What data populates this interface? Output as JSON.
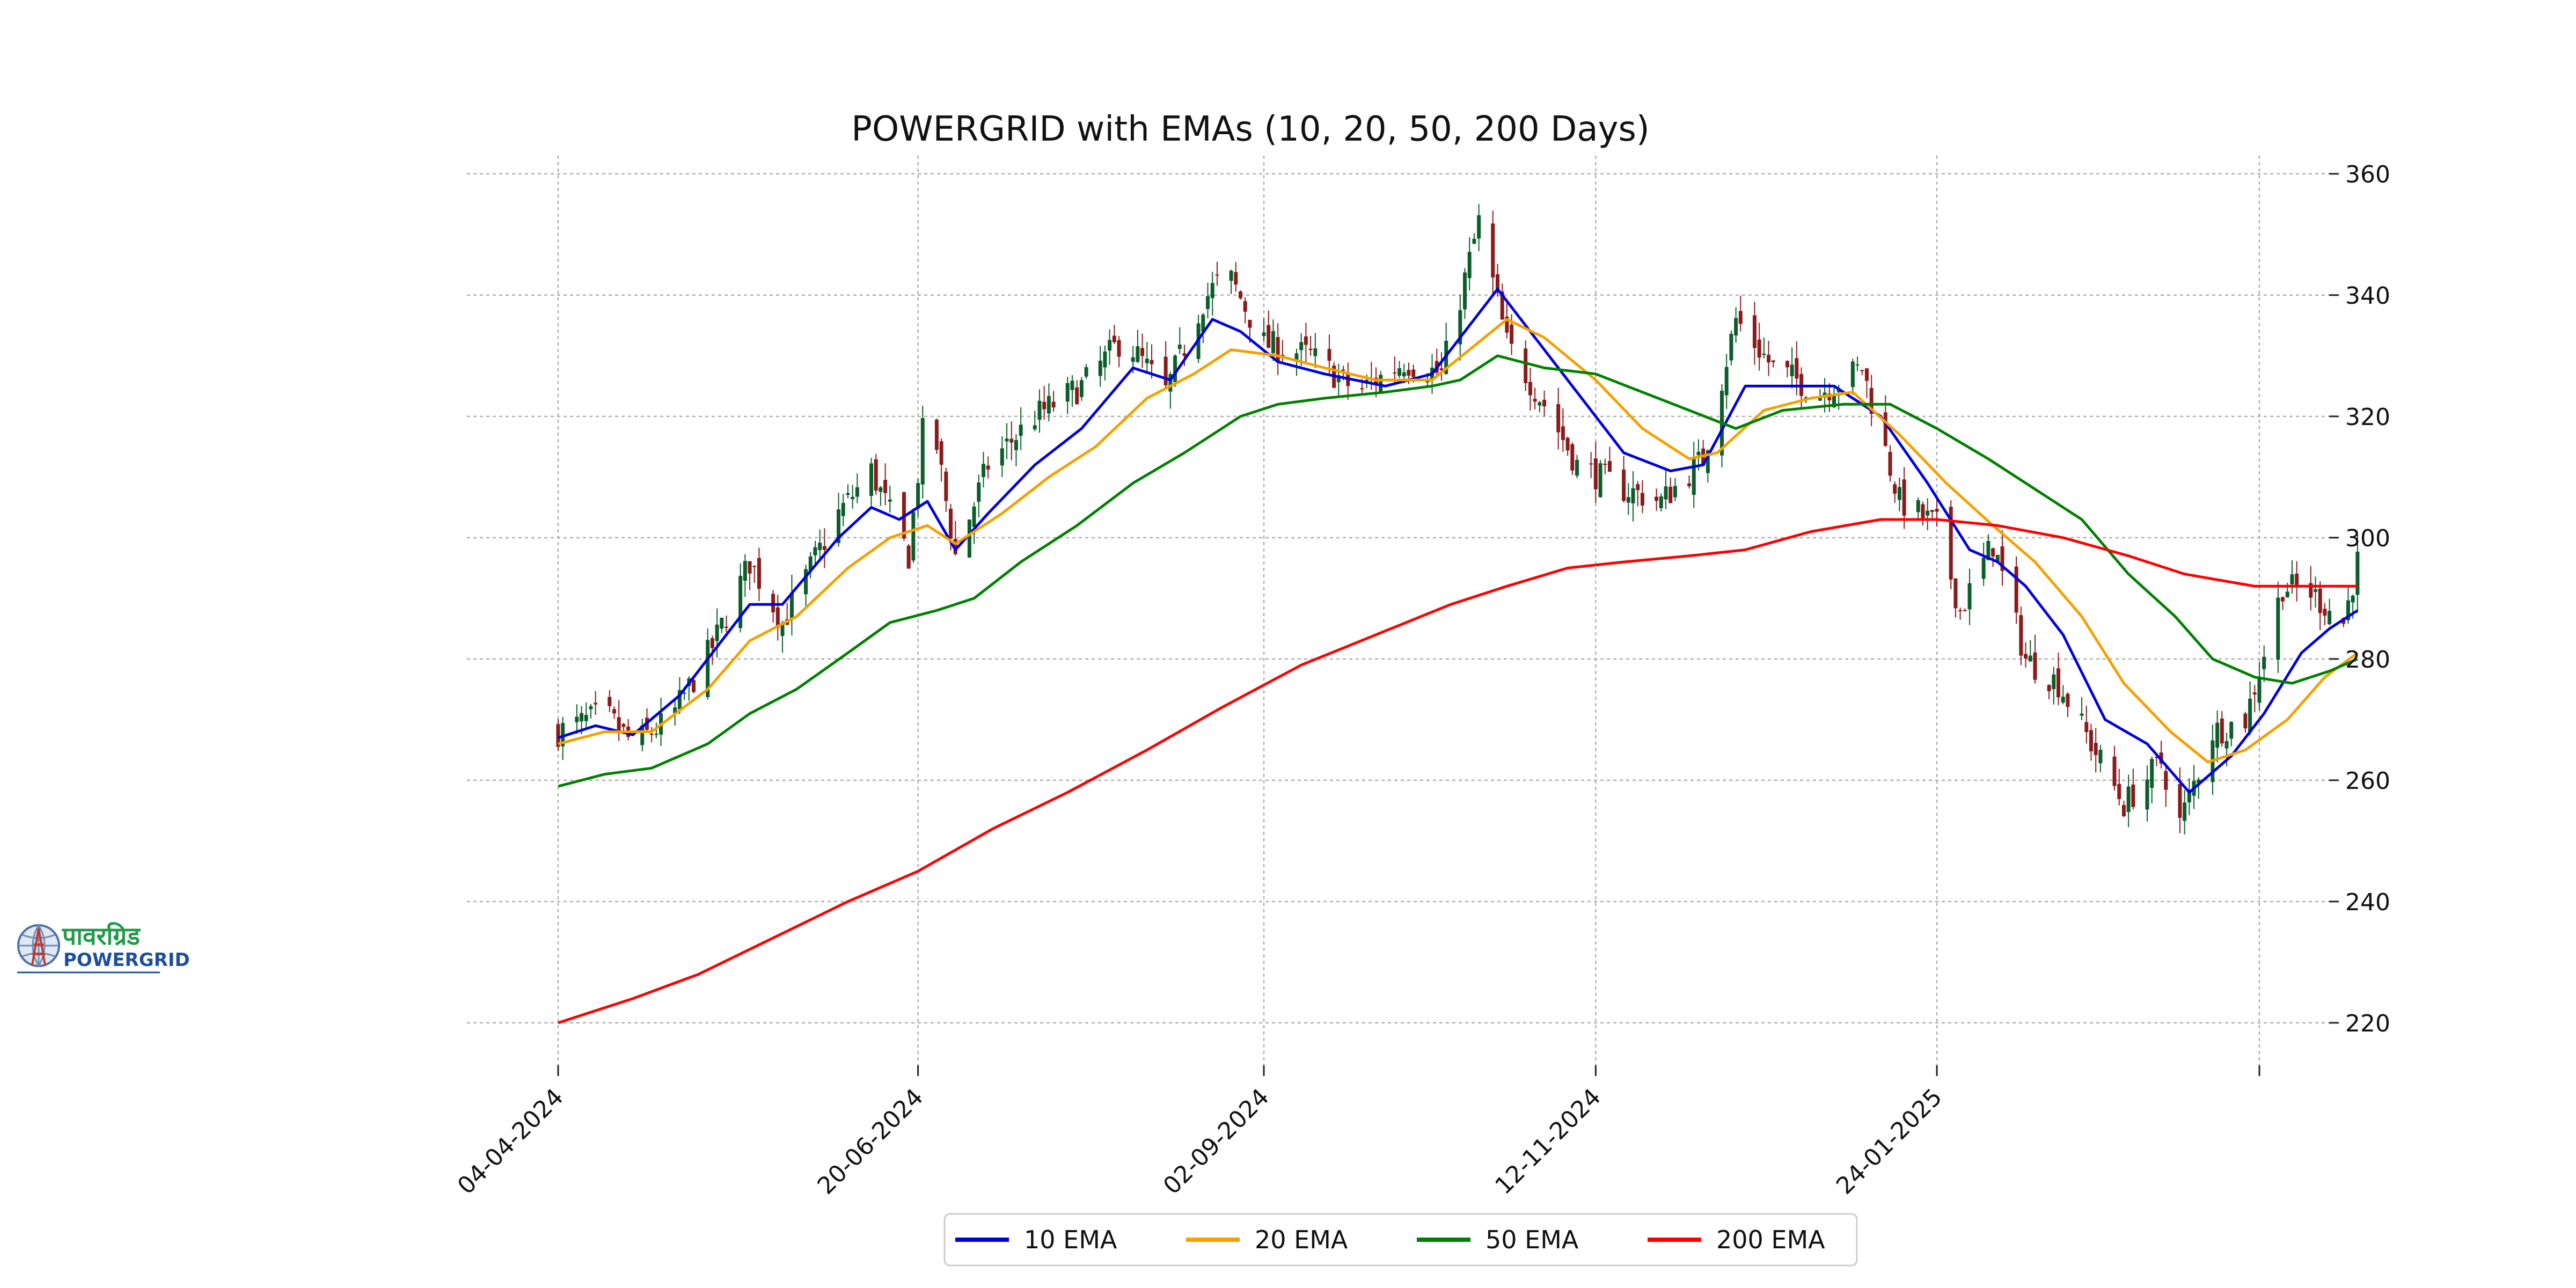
{
  "logo": {
    "text_hindi": "पावरग्रिड",
    "text_en": "POWERGRID"
  },
  "chart_data": {
    "type": "candlestick",
    "title": "POWERGRID with EMAs (10, 20, 50, 200 Days)",
    "xlabel": "",
    "ylabel": "",
    "x_range": [
      "04-04-2024",
      "03-04-2025"
    ],
    "ylim": [
      213,
      363
    ],
    "y_axis_side": "right",
    "y_ticks": [
      220,
      240,
      260,
      280,
      300,
      320,
      340,
      360
    ],
    "x_ticks": [
      {
        "date": "04-04-2024",
        "label": "04-04-2024"
      },
      {
        "date": "20-06-2024",
        "label": "20-06-2024"
      },
      {
        "date": "02-09-2024",
        "label": "02-09-2024"
      },
      {
        "date": "12-11-2024",
        "label": "12-11-2024"
      },
      {
        "date": "24-01-2025",
        "label": "24-01-2025"
      },
      {
        "date": "03-04-2025",
        "label": ""
      }
    ],
    "grid": true,
    "legend_placement": "bottom-center",
    "candle_colors": {
      "up": "#0b5e2a",
      "down": "#8b1a1a"
    },
    "close_keypoints": [
      [
        "04-04-2024",
        268
      ],
      [
        "14-04-2024",
        271
      ],
      [
        "20-04-2024",
        266
      ],
      [
        "28-04-2024",
        270
      ],
      [
        "07-05-2024",
        282
      ],
      [
        "15-05-2024",
        296
      ],
      [
        "22-05-2024",
        286
      ],
      [
        "03-06-2024",
        304
      ],
      [
        "10-06-2024",
        311
      ],
      [
        "18-06-2024",
        297
      ],
      [
        "22-06-2024",
        324
      ],
      [
        "28-06-2024",
        297
      ],
      [
        "05-07-2024",
        312
      ],
      [
        "15-07-2024",
        320
      ],
      [
        "25-07-2024",
        325
      ],
      [
        "03-08-2024",
        333
      ],
      [
        "12-08-2024",
        324
      ],
      [
        "20-08-2024",
        339
      ],
      [
        "25-08-2024",
        344
      ],
      [
        "02-09-2024",
        332
      ],
      [
        "12-09-2024",
        330
      ],
      [
        "22-09-2024",
        324
      ],
      [
        "02-10-2024",
        329
      ],
      [
        "10-10-2024",
        327
      ],
      [
        "18-10-2024",
        352
      ],
      [
        "24-10-2024",
        332
      ],
      [
        "01-11-2024",
        322
      ],
      [
        "08-11-2024",
        312
      ],
      [
        "18-11-2024",
        308
      ],
      [
        "26-11-2024",
        306
      ],
      [
        "05-12-2024",
        313
      ],
      [
        "12-12-2024",
        336
      ],
      [
        "20-12-2024",
        328
      ],
      [
        "30-12-2024",
        324
      ],
      [
        "08-01-2025",
        328
      ],
      [
        "16-01-2025",
        306
      ],
      [
        "24-01-2025",
        302
      ],
      [
        "29-01-2025",
        288
      ],
      [
        "05-02-2025",
        299
      ],
      [
        "12-02-2025",
        280
      ],
      [
        "19-02-2025",
        276
      ],
      [
        "26-02-2025",
        266
      ],
      [
        "05-03-2025",
        256
      ],
      [
        "13-03-2025",
        263
      ],
      [
        "17-03-2025",
        253
      ],
      [
        "24-03-2025",
        268
      ],
      [
        "31-03-2025",
        270
      ],
      [
        "08-04-2025",
        292
      ],
      [
        "14-04-2025",
        291
      ],
      [
        "21-04-2025",
        286
      ],
      [
        "24-04-2025",
        296
      ]
    ],
    "series": [
      {
        "name": "10 EMA",
        "color": "#0000dd",
        "points": [
          [
            "04-04-2024",
            267
          ],
          [
            "12-04-2024",
            269
          ],
          [
            "20-04-2024",
            267.5
          ],
          [
            "30-04-2024",
            274
          ],
          [
            "08-05-2024",
            282
          ],
          [
            "15-05-2024",
            289
          ],
          [
            "22-05-2024",
            289
          ],
          [
            "03-06-2024",
            300
          ],
          [
            "10-06-2024",
            305
          ],
          [
            "16-06-2024",
            303
          ],
          [
            "22-06-2024",
            306
          ],
          [
            "28-06-2024",
            298
          ],
          [
            "05-07-2024",
            304
          ],
          [
            "15-07-2024",
            312
          ],
          [
            "25-07-2024",
            318
          ],
          [
            "05-08-2024",
            328
          ],
          [
            "13-08-2024",
            326
          ],
          [
            "22-08-2024",
            336
          ],
          [
            "28-08-2024",
            334
          ],
          [
            "05-09-2024",
            329
          ],
          [
            "15-09-2024",
            327
          ],
          [
            "28-09-2024",
            325
          ],
          [
            "08-10-2024",
            327
          ],
          [
            "14-10-2024",
            333
          ],
          [
            "22-10-2024",
            341
          ],
          [
            "01-11-2024",
            331
          ],
          [
            "10-11-2024",
            322
          ],
          [
            "18-11-2024",
            314
          ],
          [
            "28-11-2024",
            311
          ],
          [
            "05-12-2024",
            312
          ],
          [
            "14-12-2024",
            325
          ],
          [
            "24-12-2024",
            325
          ],
          [
            "02-01-2025",
            325
          ],
          [
            "12-01-2025",
            320
          ],
          [
            "22-01-2025",
            309
          ],
          [
            "31-01-2025",
            298
          ],
          [
            "06-02-2025",
            296
          ],
          [
            "12-02-2025",
            292
          ],
          [
            "20-02-2025",
            284
          ],
          [
            "01-03-2025",
            270
          ],
          [
            "10-03-2025",
            266
          ],
          [
            "19-03-2025",
            258
          ],
          [
            "28-03-2025",
            264
          ],
          [
            "04-04-2025",
            271
          ],
          [
            "12-04-2025",
            281
          ],
          [
            "18-04-2025",
            285
          ],
          [
            "24-04-2025",
            288
          ]
        ]
      },
      {
        "name": "20 EMA",
        "color": "#f5a000",
        "points": [
          [
            "04-04-2024",
            266
          ],
          [
            "14-04-2024",
            268
          ],
          [
            "24-04-2024",
            268
          ],
          [
            "06-05-2024",
            275
          ],
          [
            "15-05-2024",
            283
          ],
          [
            "25-05-2024",
            287
          ],
          [
            "05-06-2024",
            295
          ],
          [
            "14-06-2024",
            300
          ],
          [
            "22-06-2024",
            302
          ],
          [
            "28-06-2024",
            299
          ],
          [
            "08-07-2024",
            304
          ],
          [
            "18-07-2024",
            310
          ],
          [
            "28-07-2024",
            315
          ],
          [
            "08-08-2024",
            323
          ],
          [
            "18-08-2024",
            327
          ],
          [
            "26-08-2024",
            331
          ],
          [
            "05-09-2024",
            330
          ],
          [
            "15-09-2024",
            328
          ],
          [
            "26-09-2024",
            326
          ],
          [
            "08-10-2024",
            326
          ],
          [
            "16-10-2024",
            331
          ],
          [
            "24-10-2024",
            336
          ],
          [
            "01-11-2024",
            333
          ],
          [
            "12-11-2024",
            326
          ],
          [
            "22-11-2024",
            318
          ],
          [
            "02-12-2024",
            313
          ],
          [
            "08-12-2024",
            314
          ],
          [
            "18-12-2024",
            321
          ],
          [
            "28-12-2024",
            323
          ],
          [
            "06-01-2025",
            324
          ],
          [
            "16-01-2025",
            317
          ],
          [
            "26-01-2025",
            309
          ],
          [
            "05-02-2025",
            302
          ],
          [
            "14-02-2025",
            296
          ],
          [
            "24-02-2025",
            287
          ],
          [
            "05-03-2025",
            276
          ],
          [
            "15-03-2025",
            268
          ],
          [
            "23-03-2025",
            263
          ],
          [
            "31-03-2025",
            265
          ],
          [
            "09-04-2025",
            270
          ],
          [
            "17-04-2025",
            277
          ],
          [
            "24-04-2025",
            281
          ]
        ]
      },
      {
        "name": "50 EMA",
        "color": "#008000",
        "points": [
          [
            "04-04-2024",
            259
          ],
          [
            "14-04-2024",
            261
          ],
          [
            "24-04-2024",
            262
          ],
          [
            "06-05-2024",
            266
          ],
          [
            "15-05-2024",
            271
          ],
          [
            "25-05-2024",
            275
          ],
          [
            "05-06-2024",
            281
          ],
          [
            "14-06-2024",
            286
          ],
          [
            "24-06-2024",
            288
          ],
          [
            "02-07-2024",
            290
          ],
          [
            "12-07-2024",
            296
          ],
          [
            "24-07-2024",
            302
          ],
          [
            "05-08-2024",
            309
          ],
          [
            "16-08-2024",
            314
          ],
          [
            "28-08-2024",
            320
          ],
          [
            "05-09-2024",
            322
          ],
          [
            "15-09-2024",
            323
          ],
          [
            "28-09-2024",
            324
          ],
          [
            "08-10-2024",
            325
          ],
          [
            "14-10-2024",
            326
          ],
          [
            "22-10-2024",
            330
          ],
          [
            "01-11-2024",
            328
          ],
          [
            "12-11-2024",
            327
          ],
          [
            "22-11-2024",
            324
          ],
          [
            "02-12-2024",
            321
          ],
          [
            "12-12-2024",
            318
          ],
          [
            "22-12-2024",
            321
          ],
          [
            "04-01-2025",
            322
          ],
          [
            "14-01-2025",
            322
          ],
          [
            "24-01-2025",
            318
          ],
          [
            "04-02-2025",
            313
          ],
          [
            "14-02-2025",
            308
          ],
          [
            "24-02-2025",
            303
          ],
          [
            "06-03-2025",
            294
          ],
          [
            "16-03-2025",
            287
          ],
          [
            "24-03-2025",
            280
          ],
          [
            "02-04-2025",
            277
          ],
          [
            "10-04-2025",
            276
          ],
          [
            "18-04-2025",
            278
          ],
          [
            "24-04-2025",
            280
          ]
        ]
      },
      {
        "name": "200 EMA",
        "color": "#ff0000",
        "points": [
          [
            "04-04-2024",
            220
          ],
          [
            "20-04-2024",
            224
          ],
          [
            "04-05-2024",
            228
          ],
          [
            "20-05-2024",
            234
          ],
          [
            "05-06-2024",
            240
          ],
          [
            "20-06-2024",
            245
          ],
          [
            "06-07-2024",
            252
          ],
          [
            "22-07-2024",
            258
          ],
          [
            "08-08-2024",
            265
          ],
          [
            "24-08-2024",
            272
          ],
          [
            "10-09-2024",
            279
          ],
          [
            "26-09-2024",
            284
          ],
          [
            "12-10-2024",
            289
          ],
          [
            "24-10-2024",
            292
          ],
          [
            "06-11-2024",
            295
          ],
          [
            "18-11-2024",
            296
          ],
          [
            "02-12-2024",
            297
          ],
          [
            "14-12-2024",
            298
          ],
          [
            "28-12-2024",
            301
          ],
          [
            "12-01-2025",
            303
          ],
          [
            "24-01-2025",
            303
          ],
          [
            "06-02-2025",
            302
          ],
          [
            "20-02-2025",
            300
          ],
          [
            "06-03-2025",
            297
          ],
          [
            "18-03-2025",
            294
          ],
          [
            "02-04-2025",
            292
          ],
          [
            "14-04-2025",
            292
          ],
          [
            "24-04-2025",
            292
          ]
        ]
      }
    ]
  }
}
